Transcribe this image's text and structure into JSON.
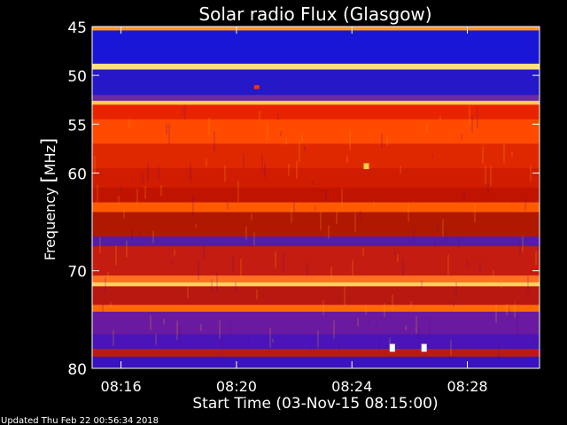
{
  "chart_data": {
    "type": "heatmap",
    "title": "Solar radio Flux (Glasgow)",
    "ylabel_parts": [
      "Frequency ",
      "[",
      "MHz",
      "]"
    ],
    "xlabel": "Start Time (03-Nov-15 08:15:00)",
    "footer": "Updated Thu Feb 22 00:56:34 2018",
    "x_range_minutes": [
      0,
      15.5
    ],
    "x_ticks": [
      {
        "minutes": 1,
        "label": "08:16"
      },
      {
        "minutes": 5,
        "label": "08:20"
      },
      {
        "minutes": 9,
        "label": "08:24"
      },
      {
        "minutes": 13,
        "label": "08:28"
      }
    ],
    "y_range_mhz": [
      45,
      80
    ],
    "y_ticks": [
      45,
      50,
      55,
      60,
      70,
      80
    ],
    "bands": [
      {
        "from": 45.0,
        "to": 45.4,
        "color": "#ff9a1a"
      },
      {
        "from": 45.4,
        "to": 48.8,
        "color": "#1a16d8"
      },
      {
        "from": 48.8,
        "to": 49.4,
        "color": "#ffe07a"
      },
      {
        "from": 49.4,
        "to": 52.0,
        "color": "#2418c8"
      },
      {
        "from": 52.0,
        "to": 52.6,
        "color": "#6a2aa0"
      },
      {
        "from": 52.6,
        "to": 53.0,
        "color": "#ffc84a"
      },
      {
        "from": 53.0,
        "to": 54.5,
        "color": "#e82400"
      },
      {
        "from": 54.5,
        "to": 57.0,
        "color": "#ff4a00"
      },
      {
        "from": 57.0,
        "to": 59.5,
        "color": "#e02800"
      },
      {
        "from": 59.5,
        "to": 61.5,
        "color": "#d01c00"
      },
      {
        "from": 61.5,
        "to": 63.0,
        "color": "#c01400"
      },
      {
        "from": 63.0,
        "to": 64.0,
        "color": "#ff5a00"
      },
      {
        "from": 64.0,
        "to": 66.5,
        "color": "#b01800"
      },
      {
        "from": 66.5,
        "to": 67.5,
        "color": "#5a1aa8"
      },
      {
        "from": 67.5,
        "to": 70.5,
        "color": "#c41c10"
      },
      {
        "from": 70.5,
        "to": 71.2,
        "color": "#ff7020"
      },
      {
        "from": 71.2,
        "to": 71.6,
        "color": "#ffd060"
      },
      {
        "from": 71.6,
        "to": 73.5,
        "color": "#b81810"
      },
      {
        "from": 73.5,
        "to": 74.2,
        "color": "#ff6a00"
      },
      {
        "from": 74.2,
        "to": 76.5,
        "color": "#6a1aa0"
      },
      {
        "from": 76.5,
        "to": 78.0,
        "color": "#4a14b8"
      },
      {
        "from": 78.0,
        "to": 78.8,
        "color": "#c01810"
      },
      {
        "from": 78.8,
        "to": 80.0,
        "color": "#3a12c0"
      }
    ],
    "bursts": [
      {
        "minutes": 10.4,
        "mhz_from": 77.5,
        "mhz_to": 78.3,
        "color": "#ffffff"
      },
      {
        "minutes": 11.5,
        "mhz_from": 77.5,
        "mhz_to": 78.3,
        "color": "#ffffff"
      },
      {
        "minutes": 9.5,
        "mhz_from": 59.0,
        "mhz_to": 59.6,
        "color": "#ffd040"
      },
      {
        "minutes": 5.7,
        "mhz_from": 51.0,
        "mhz_to": 51.4,
        "color": "#ff3000"
      }
    ]
  }
}
